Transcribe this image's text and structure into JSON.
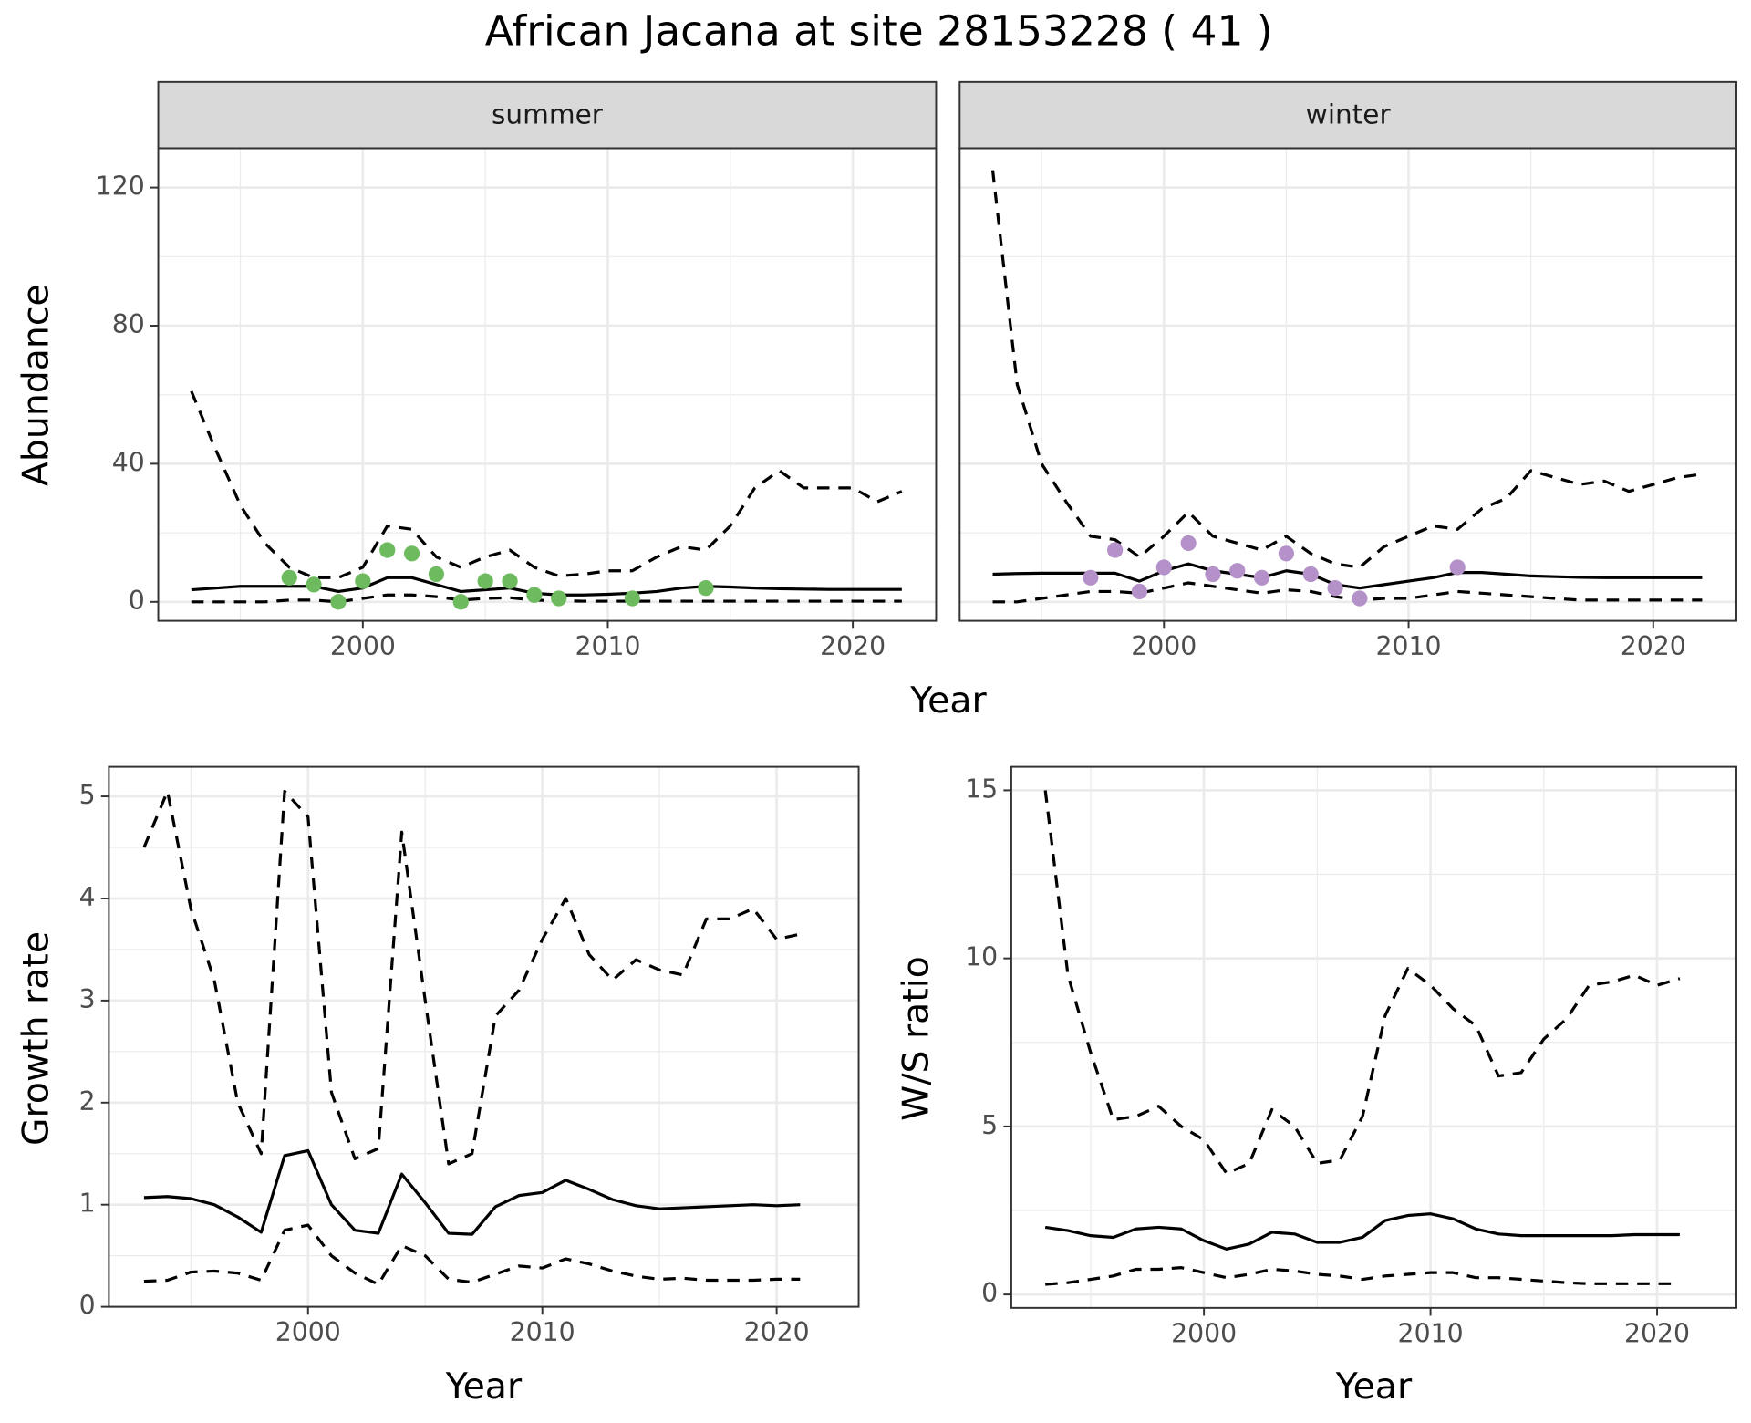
{
  "title": "African Jacana at site 28153228 ( 41 )",
  "chart_data": [
    {
      "type": "line",
      "xlabel": "Year",
      "ylabel": "Abundance",
      "xlim": [
        1991.65,
        2023.4
      ],
      "xticks": [
        2000,
        2010,
        2020
      ],
      "ylim": [
        -5.5,
        131.4
      ],
      "yticks": [
        0,
        40,
        80,
        120
      ],
      "grid": true,
      "facets": [
        {
          "label": "summer",
          "x": [
            1993,
            1994,
            1995,
            1996,
            1997,
            1998,
            1999,
            2000,
            2001,
            2002,
            2003,
            2004,
            2005,
            2006,
            2007,
            2008,
            2009,
            2010,
            2011,
            2012,
            2013,
            2014,
            2015,
            2016,
            2017,
            2018,
            2019,
            2020,
            2021,
            2022
          ],
          "series": [
            {
              "color": "#000000",
              "dash": "solid",
              "values": [
                3.5,
                4,
                4.5,
                4.5,
                4.5,
                4.5,
                3,
                4,
                7,
                7,
                5,
                3,
                3.5,
                4,
                2.5,
                2,
                2,
                2.2,
                2.5,
                3,
                4,
                4.5,
                4.3,
                4,
                3.8,
                3.7,
                3.6,
                3.6,
                3.6,
                3.6
              ]
            },
            {
              "color": "#000000",
              "dash": "dashed",
              "values": [
                61,
                44,
                28,
                17,
                10,
                7,
                7,
                10,
                22,
                21,
                13,
                10,
                13,
                15,
                10,
                7.5,
                8,
                9,
                9,
                13,
                16,
                15,
                22,
                33,
                38,
                33,
                33,
                33,
                29,
                32
              ]
            },
            {
              "color": "#000000",
              "dash": "dashed",
              "values": [
                0,
                0,
                0,
                0,
                0.5,
                0.5,
                0,
                1,
                2,
                2,
                1.5,
                0.5,
                1,
                1.2,
                0.5,
                0.3,
                0.2,
                0.2,
                0.2,
                0.2,
                0.2,
                0.2,
                0.2,
                0.2,
                0.2,
                0.2,
                0.2,
                0.2,
                0.2,
                0.2
              ]
            }
          ],
          "points": {
            "color": "#6dbb5e",
            "x": [
              1997,
              1998,
              1999,
              2000,
              2001,
              2002,
              2003,
              2004,
              2005,
              2006,
              2007,
              2008,
              2011,
              2014
            ],
            "values": [
              7,
              5,
              0,
              6,
              15,
              14,
              8,
              0,
              6,
              6,
              2,
              1,
              1,
              4
            ]
          }
        },
        {
          "label": "winter",
          "x": [
            1993,
            1994,
            1995,
            1996,
            1997,
            1998,
            1999,
            2000,
            2001,
            2002,
            2003,
            2004,
            2005,
            2006,
            2007,
            2008,
            2009,
            2010,
            2011,
            2012,
            2013,
            2014,
            2015,
            2016,
            2017,
            2018,
            2019,
            2020,
            2021,
            2022
          ],
          "series": [
            {
              "color": "#000000",
              "dash": "solid",
              "values": [
                8,
                8.2,
                8.3,
                8.3,
                8.3,
                8.3,
                6,
                9,
                11,
                9,
                8,
                7,
                9,
                8,
                5,
                4,
                5,
                6,
                7,
                8.5,
                8.5,
                8,
                7.5,
                7.3,
                7.1,
                7,
                7,
                7,
                7,
                7
              ]
            },
            {
              "color": "#000000",
              "dash": "dashed",
              "values": [
                125,
                63,
                40,
                29,
                19,
                18,
                13,
                19,
                26,
                19,
                17,
                15,
                19,
                14,
                11,
                10,
                16,
                19,
                22,
                21,
                27,
                30,
                38,
                36,
                34,
                35,
                32,
                34,
                36,
                37
              ]
            },
            {
              "color": "#000000",
              "dash": "dashed",
              "values": [
                0,
                0,
                1,
                2,
                3,
                3,
                2.5,
                4,
                5.5,
                4.5,
                3.5,
                2.5,
                3.5,
                3,
                1.5,
                0.5,
                1,
                1,
                2,
                3,
                2.5,
                2,
                1.5,
                1,
                0.5,
                0.5,
                0.5,
                0.5,
                0.5,
                0.5
              ]
            }
          ],
          "points": {
            "color": "#b491c8",
            "x": [
              1997,
              1998,
              1999,
              2000,
              2001,
              2002,
              2003,
              2004,
              2005,
              2006,
              2007,
              2008,
              2012
            ],
            "values": [
              7,
              15,
              3,
              10,
              17,
              8,
              9,
              7,
              14,
              8,
              4,
              1,
              10
            ]
          }
        }
      ]
    },
    {
      "type": "line",
      "xlabel": "Year",
      "ylabel": "Growth rate",
      "xlim": [
        1991.5,
        2023.5
      ],
      "xticks": [
        2000,
        2010,
        2020
      ],
      "ylim": [
        0,
        5.29
      ],
      "yticks": [
        0,
        1,
        2,
        3,
        4,
        5
      ],
      "grid": true,
      "x": [
        1993,
        1994,
        1995,
        1996,
        1997,
        1998,
        1999,
        2000,
        2001,
        2002,
        2003,
        2004,
        2005,
        2006,
        2007,
        2008,
        2009,
        2010,
        2011,
        2012,
        2013,
        2014,
        2015,
        2016,
        2017,
        2018,
        2019,
        2020,
        2021
      ],
      "series": [
        {
          "color": "#000000",
          "dash": "solid",
          "values": [
            1.07,
            1.08,
            1.06,
            1.0,
            0.88,
            0.73,
            1.48,
            1.53,
            1.0,
            0.75,
            0.72,
            1.3,
            1.02,
            0.72,
            0.71,
            0.98,
            1.09,
            1.12,
            1.24,
            1.15,
            1.05,
            0.99,
            0.96,
            0.97,
            0.98,
            0.99,
            1.0,
            0.99,
            1.0
          ]
        },
        {
          "color": "#000000",
          "dash": "dashed",
          "values": [
            4.5,
            5.05,
            3.9,
            3.2,
            2.0,
            1.5,
            5.05,
            4.8,
            2.1,
            1.45,
            1.55,
            4.65,
            3.0,
            1.4,
            1.5,
            2.85,
            3.1,
            3.6,
            4.0,
            3.45,
            3.2,
            3.4,
            3.3,
            3.25,
            3.8,
            3.8,
            3.9,
            3.6,
            3.65
          ]
        },
        {
          "color": "#000000",
          "dash": "dashed",
          "values": [
            0.25,
            0.26,
            0.34,
            0.35,
            0.33,
            0.26,
            0.75,
            0.8,
            0.5,
            0.33,
            0.22,
            0.6,
            0.5,
            0.27,
            0.24,
            0.32,
            0.4,
            0.38,
            0.47,
            0.42,
            0.35,
            0.3,
            0.27,
            0.28,
            0.26,
            0.26,
            0.26,
            0.27,
            0.27
          ]
        }
      ]
    },
    {
      "type": "line",
      "xlabel": "Year",
      "ylabel": "W/S ratio",
      "xlim": [
        1991.5,
        2023.5
      ],
      "xticks": [
        2000,
        2010,
        2020
      ],
      "ylim": [
        -0.4,
        15.7
      ],
      "yticks": [
        0,
        5,
        10,
        15
      ],
      "grid": true,
      "x": [
        1993,
        1994,
        1995,
        1996,
        1997,
        1998,
        1999,
        2000,
        2001,
        2002,
        2003,
        2004,
        2005,
        2006,
        2007,
        2008,
        2009,
        2010,
        2011,
        2012,
        2013,
        2014,
        2015,
        2016,
        2017,
        2018,
        2019,
        2020,
        2021
      ],
      "series": [
        {
          "color": "#000000",
          "dash": "solid",
          "values": [
            2.0,
            1.9,
            1.75,
            1.7,
            1.95,
            2.0,
            1.95,
            1.6,
            1.35,
            1.5,
            1.85,
            1.8,
            1.55,
            1.55,
            1.7,
            2.2,
            2.35,
            2.4,
            2.25,
            1.95,
            1.8,
            1.75,
            1.75,
            1.75,
            1.75,
            1.75,
            1.78,
            1.78,
            1.78
          ]
        },
        {
          "color": "#000000",
          "dash": "dashed",
          "values": [
            15,
            9.5,
            7.2,
            5.2,
            5.3,
            5.6,
            5.0,
            4.6,
            3.6,
            3.9,
            5.5,
            5.0,
            3.9,
            4.0,
            5.3,
            8.3,
            9.7,
            9.2,
            8.5,
            8.0,
            6.5,
            6.6,
            7.6,
            8.2,
            9.2,
            9.3,
            9.5,
            9.2,
            9.4
          ]
        },
        {
          "color": "#000000",
          "dash": "dashed",
          "values": [
            0.3,
            0.35,
            0.45,
            0.55,
            0.75,
            0.75,
            0.8,
            0.65,
            0.5,
            0.6,
            0.75,
            0.7,
            0.6,
            0.55,
            0.45,
            0.55,
            0.6,
            0.65,
            0.65,
            0.5,
            0.5,
            0.45,
            0.4,
            0.35,
            0.32,
            0.32,
            0.32,
            0.32,
            0.32
          ]
        }
      ]
    }
  ]
}
